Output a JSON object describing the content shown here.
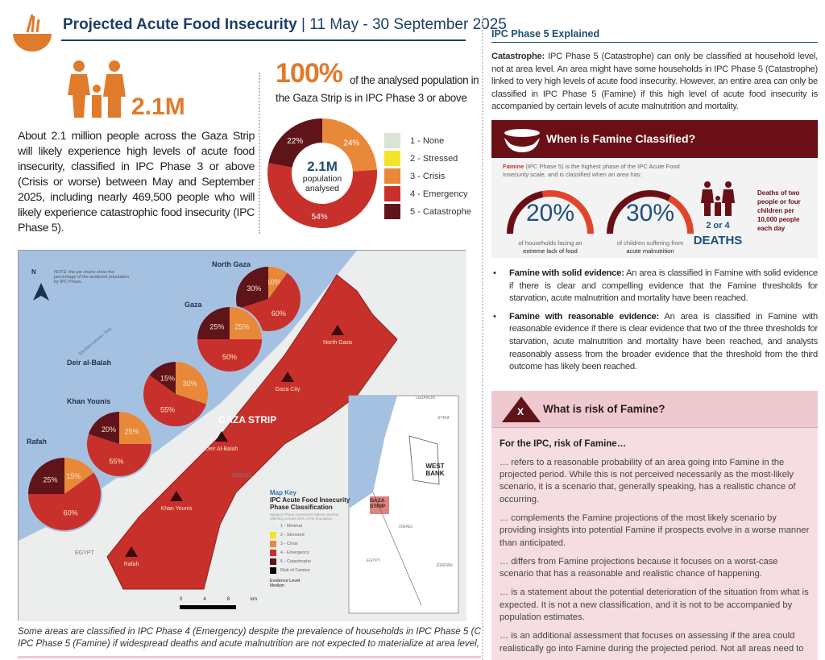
{
  "header": {
    "title_bold": "Projected Acute Food Insecurity",
    "separator": "|",
    "period": "11 May - 30 September 2025",
    "icon": "bowl-wheat-icon"
  },
  "summary": {
    "big_number": "2.1M",
    "paragraph": "About 2.1 million people across the Gaza Strip will likely experience high levels of acute food insecurity, classified in IPC Phase 3 or above (Crisis or worse) between May and September 2025, including nearly 469,500 people who will likely experience catastrophic food insecurity (IPC Phase 5)."
  },
  "overall": {
    "pct": "100%",
    "text1": "of the analysed population in",
    "text2": "the Gaza Strip is in IPC Phase 3 or above",
    "center_value": "2.1M",
    "center_label1": "population",
    "center_label2": "analysed"
  },
  "chart_data": [
    {
      "type": "pie",
      "title": "",
      "categories": [
        "3 - Crisis",
        "4 - Emergency",
        "5 - Catastrophe"
      ],
      "values": [
        24,
        54,
        22
      ],
      "labels": [
        "24%",
        "54%",
        "22%"
      ]
    },
    {
      "type": "pie",
      "regions": [
        {
          "name": "North Gaza",
          "crisis": 10,
          "emergency": 60,
          "catastrophe": 30
        },
        {
          "name": "Gaza",
          "crisis": 25,
          "emergency": 50,
          "catastrophe": 25
        },
        {
          "name": "Deir al-Balah",
          "crisis": 30,
          "emergency": 55,
          "catastrophe": 15
        },
        {
          "name": "Khan Younis",
          "crisis": 25,
          "emergency": 55,
          "catastrophe": 20
        },
        {
          "name": "Rafah",
          "crisis": 15,
          "emergency": 60,
          "catastrophe": 25
        }
      ]
    }
  ],
  "legend": [
    {
      "label": "1 - None",
      "color": "#d9e3d6"
    },
    {
      "label": "2 - Stressed",
      "color": "#f2e528"
    },
    {
      "label": "3 - Crisis",
      "color": "#e8893a"
    },
    {
      "label": "4 - Emergency",
      "color": "#c8302c"
    },
    {
      "label": "5 - Catastrophe",
      "color": "#5e1419"
    }
  ],
  "map": {
    "note": "NOTE: the pie charts show the percentage of the analysed population by IPC Phase.",
    "north": "N",
    "strip_label": "GAZA STRIP",
    "areas": [
      "North Gaza",
      "Gaza City",
      "Deir Al-Balah",
      "Khan Younis",
      "Rafah"
    ],
    "countries": {
      "israel": "ISRAEL",
      "egypt": "EGYPT",
      "west_bank": "WEST BANK",
      "jordan": "JORDAN",
      "lebanon": "LEBANON",
      "syria": "SYRIA",
      "gaza_strip_inset": "GAZA STRIP",
      "sea": "Mediterranean Sea"
    },
    "key": {
      "title": "Map Key",
      "subtitle1": "IPC Acute Food Insecurity",
      "subtitle2": "Phase Classification",
      "desc": "Mapped Phase represents highest severity affecting at least 20% of the population",
      "items": [
        "1 - Minimal",
        "2 - Stressed",
        "3 - Crisis",
        "4 - Emergency",
        "5 - Catastrophe",
        "Risk of Famine"
      ],
      "evidence_title": "Evidence Level",
      "evidence_item": "Medium"
    },
    "scale": [
      "0",
      "4",
      "8",
      "km"
    ]
  },
  "caption": {
    "line1": "Some areas are classified in IPC Phase 4 (Emergency) despite the prevalence of households in IPC Phase 5 (Catastr",
    "line2": "IPC Phase 5 (Famine) if widespread deaths and acute malnutrition are not expected to materialize at area level, as"
  },
  "right": {
    "heading": "IPC Phase 5 Explained",
    "catastrophe_bold": "Catastrophe:",
    "catastrophe_text": " IPC Phase 5 (Catastrophe) can only be classified at household level, not at area level. An area might have some households in IPC Phase 5 (Catastrophe) linked to very high levels of acute food insecurity. However, an entire area can only be classified in IPC Phase 5 (Famine) if this high level of acute food insecurity is accompanied by certain levels of acute malnutrition and mortality.",
    "famine_box": {
      "title": "When is Famine Classified?",
      "intro_bold": "Famine",
      "intro": " (IPC Phase 5) is the highest phase of the IPC Acute Food Insecurity scale, and is classified when an area has:",
      "gauges": [
        {
          "value": "20%",
          "label1": "of households facing an",
          "label2": "extreme lack of food",
          "level": 20
        },
        {
          "value": "30%",
          "label1": "of children suffering from",
          "label2": "acute malnutrition",
          "level": 30
        }
      ],
      "deaths_small": "2 or 4",
      "deaths_big": "DEATHS",
      "deaths_text": "Deaths of two people or four children per 10,000 people each day"
    },
    "bullets": [
      {
        "bold": "Famine with solid evidence:",
        "text": " An area is classified in Famine with solid evidence if there is clear and compelling evidence that the Famine thresholds for starvation, acute malnutrition and mortality have been reached."
      },
      {
        "bold": "Famine with reasonable evidence:",
        "text": " An area is classified in Famine with reasonable evidence if there is clear evidence that two of the three thresholds for starvation, acute malnutrition and mortality have been reached, and analysts reasonably assess from the broader evidence that the threshold from the third outcome has likely been reached."
      }
    ],
    "risk": {
      "title": "What is risk of Famine?",
      "icon_letter": "X",
      "lead": "For the IPC, risk of Famine…",
      "paras": [
        "… refers to a reasonable probability of an area going into Famine in the projected period. While this is not perceived necessarily as the most-likely scenario, it is a scenario that, generally speaking, has a realistic chance of occurring.",
        "… complements the Famine projections of the most likely scenario by providing insights into potential Famine if prospects evolve in a worse manner than anticipated.",
        "… differs from Famine projections because it focuses on a worst-case scenario  that has a reasonable and realistic chance of happening.",
        "… is a statement about the potential deterioration of the situation from what is expected. It is not a new classification, and it is not to be accompanied by population estimates.",
        "… is an additional assessment that focuses on assessing if the area could realistically go into Famine during the projected period. Not all areas need to"
      ]
    }
  }
}
